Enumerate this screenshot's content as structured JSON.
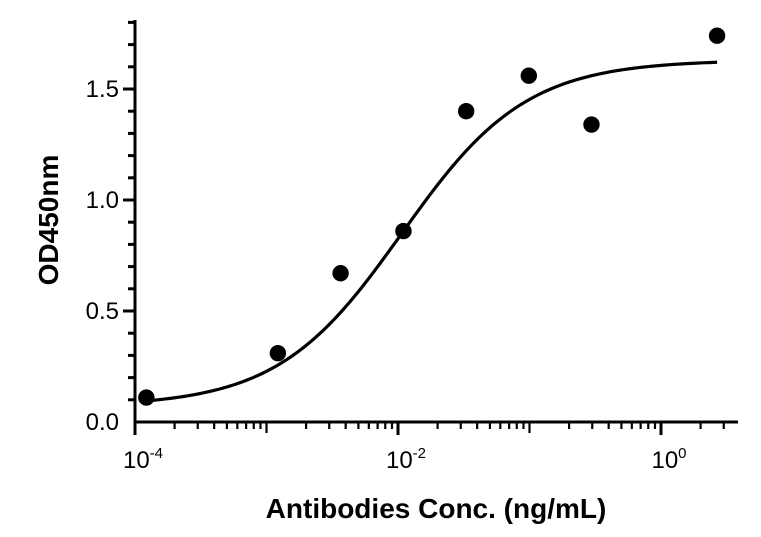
{
  "chart_data": {
    "type": "scatter",
    "title": "",
    "xlabel": "Antibodies Conc. (ng/mL)",
    "ylabel": "OD450nm",
    "x_scale": "log",
    "xlim": [
      0.0001,
      6
    ],
    "ylim": [
      0,
      1.8
    ],
    "y_ticks": [
      {
        "value": 0,
        "label": "0.0"
      },
      {
        "value": 0.5,
        "label": "0.5"
      },
      {
        "value": 1,
        "label": "1.0"
      },
      {
        "value": 1.5,
        "label": "1.5"
      }
    ],
    "x_ticks": [
      {
        "value": 0.0001,
        "base": "10",
        "exp": "-4"
      },
      {
        "value": 0.01,
        "base": "10",
        "exp": "-2"
      },
      {
        "value": 1,
        "base": "10",
        "exp": "0"
      }
    ],
    "grid": false,
    "legend": "none",
    "series": [
      {
        "type": "scatter",
        "x": [
          0.000122,
          0.00122,
          0.00366,
          0.011,
          0.033,
          0.0988,
          0.296,
          2.67
        ],
        "y": [
          0.11,
          0.31,
          0.67,
          0.86,
          1.4,
          1.56,
          1.34,
          1.74
        ]
      },
      {
        "type": "fit",
        "model": "4PL",
        "bottom": 0.07,
        "top": 1.63,
        "ec50": 0.0107,
        "hill": 0.92
      }
    ],
    "colors": {
      "points": "#000000",
      "curve": "#000000",
      "axes": "#000000"
    }
  }
}
